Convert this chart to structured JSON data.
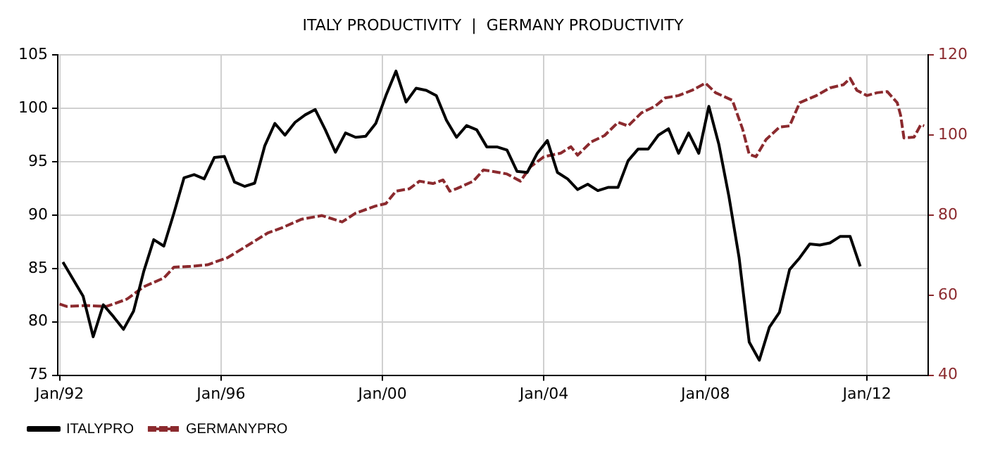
{
  "chart_data": {
    "type": "line",
    "title": "ITALY PRODUCTIVITY  |  GERMANY PRODUCTIVITY",
    "xlim": [
      "1991-12-15",
      "2013-07-07"
    ],
    "xticks": [
      {
        "value": "1992-01",
        "label": "Jan/92"
      },
      {
        "value": "1996-01",
        "label": "Jan/96"
      },
      {
        "value": "2000-01",
        "label": "Jan/00"
      },
      {
        "value": "2004-01",
        "label": "Jan/04"
      },
      {
        "value": "2008-01",
        "label": "Jan/08"
      },
      {
        "value": "2012-01",
        "label": "Jan/12"
      }
    ],
    "ylim": [
      75,
      105
    ],
    "yticks": [
      75,
      80,
      85,
      90,
      95,
      100,
      105
    ],
    "y2lim": [
      40,
      120
    ],
    "y2ticks": [
      40,
      60,
      80,
      100,
      120
    ],
    "grid": true,
    "legend": "bottom left",
    "marker": "none",
    "series": [
      {
        "name": "ITALYPRO",
        "color": "#000000",
        "line_style": "solid",
        "x": [
          "1992-02",
          "1992-08",
          "1992-11",
          "1993-02",
          "1993-05",
          "1993-08",
          "1993-11",
          "1994-02",
          "1994-05",
          "1994-08",
          "1994-11",
          "1995-02",
          "1995-05",
          "1995-08",
          "1995-11",
          "1996-02",
          "1996-05",
          "1996-08",
          "1996-11",
          "1997-02",
          "1997-05",
          "1997-08",
          "1997-11",
          "1998-02",
          "1998-05",
          "1998-08",
          "1998-11",
          "1999-02",
          "1999-05",
          "1999-08",
          "1999-11",
          "2000-02",
          "2000-05",
          "2000-08",
          "2000-11",
          "2001-02",
          "2001-05",
          "2001-08",
          "2001-11",
          "2002-02",
          "2002-05",
          "2002-08",
          "2002-11",
          "2003-02",
          "2003-05",
          "2003-08",
          "2003-11",
          "2004-02",
          "2004-05",
          "2004-08",
          "2004-11",
          "2005-02",
          "2005-05",
          "2005-08",
          "2005-11",
          "2006-02",
          "2006-05",
          "2006-08",
          "2006-11",
          "2007-02",
          "2007-05",
          "2007-08",
          "2007-11",
          "2008-02",
          "2008-05",
          "2008-08",
          "2008-11",
          "2009-02",
          "2009-05",
          "2009-08",
          "2009-11",
          "2010-02",
          "2010-05",
          "2010-08",
          "2010-11",
          "2011-02",
          "2011-05",
          "2011-08",
          "2011-11"
        ],
        "values": [
          85.6,
          82.4,
          78.6,
          81.6,
          80.5,
          79.3,
          81.0,
          84.7,
          87.7,
          87.1,
          90.2,
          93.5,
          93.8,
          93.4,
          95.4,
          95.5,
          93.1,
          92.7,
          93.0,
          96.5,
          98.6,
          97.5,
          98.7,
          99.4,
          99.9,
          98.0,
          95.9,
          97.7,
          97.3,
          97.4,
          98.6,
          101.2,
          103.5,
          100.6,
          101.9,
          101.7,
          101.2,
          98.9,
          97.3,
          98.4,
          98.0,
          96.4,
          96.4,
          96.1,
          94.1,
          94.0,
          95.8,
          97.0,
          94.0,
          93.4,
          92.4,
          92.9,
          92.3,
          92.6,
          92.6,
          95.1,
          96.2,
          96.2,
          97.5,
          98.1,
          95.8,
          97.7,
          95.8,
          100.2,
          96.6,
          91.7,
          86.0,
          78.1,
          76.4,
          79.5,
          80.9,
          84.9,
          86.0,
          87.3,
          87.2,
          87.4,
          88.0,
          88.0,
          85.2
        ]
      },
      {
        "name": "GERMANYPRO",
        "color": "#8b2a2e",
        "axis": "y2",
        "line_style": "dashed",
        "x": [
          "1992-01",
          "1992-03",
          "1992-09",
          "1993-03",
          "1993-09",
          "1994-02",
          "1994-08",
          "1994-11",
          "1995-04",
          "1995-09",
          "1996-03",
          "1996-09",
          "1997-03",
          "1997-07",
          "1998-01",
          "1998-07",
          "1999-01",
          "1999-05",
          "1999-11",
          "2000-02",
          "2000-05",
          "2000-09",
          "2000-12",
          "2001-04",
          "2001-07",
          "2001-09",
          "2001-11",
          "2002-04",
          "2002-07",
          "2002-10",
          "2003-02",
          "2003-06",
          "2003-09",
          "2004-01",
          "2004-06",
          "2004-09",
          "2004-11",
          "2005-03",
          "2005-07",
          "2005-11",
          "2006-02",
          "2006-06",
          "2006-10",
          "2007-01",
          "2007-05",
          "2007-09",
          "2008-01",
          "2008-04",
          "2008-09",
          "2008-12",
          "2009-02",
          "2009-04",
          "2009-07",
          "2009-11",
          "2010-02",
          "2010-05",
          "2010-10",
          "2011-02",
          "2011-06",
          "2011-08",
          "2011-10",
          "2012-01",
          "2012-04",
          "2012-07",
          "2012-10",
          "2012-11",
          "2012-12",
          "2013-03",
          "2013-05",
          "2013-06"
        ],
        "values": [
          57.8,
          57.2,
          57.4,
          57.2,
          59.0,
          62.1,
          64.3,
          67.0,
          67.2,
          67.6,
          69.4,
          72.5,
          75.6,
          76.8,
          79.0,
          79.9,
          78.3,
          80.5,
          82.3,
          82.9,
          86.0,
          86.6,
          88.5,
          87.9,
          88.8,
          86.0,
          86.6,
          88.5,
          91.3,
          90.9,
          90.3,
          88.5,
          92.1,
          94.6,
          95.5,
          97.1,
          95.0,
          98.3,
          99.9,
          103.2,
          102.3,
          105.6,
          107.2,
          109.3,
          109.9,
          111.2,
          113.0,
          110.6,
          108.7,
          101.6,
          95.2,
          94.6,
          98.9,
          102.0,
          102.3,
          108.1,
          109.9,
          111.8,
          112.6,
          114.2,
          111.2,
          109.9,
          110.6,
          110.9,
          108.1,
          105.0,
          99.3,
          99.5,
          102.6,
          102.3
        ]
      }
    ]
  }
}
